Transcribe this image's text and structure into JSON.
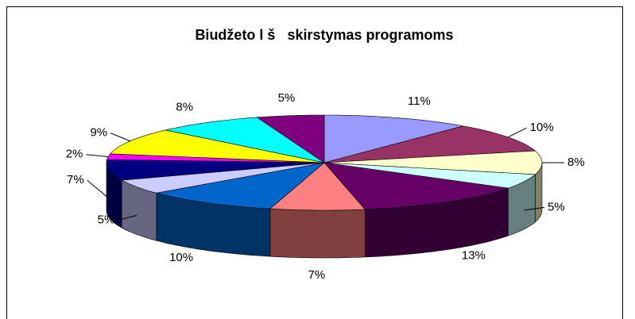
{
  "chart_data": {
    "type": "pie",
    "title": "Biudžeto l š   skirstymas programoms",
    "values": [
      11,
      10,
      8,
      5,
      13,
      7,
      10,
      5,
      7,
      2,
      9,
      8,
      5
    ],
    "value_labels": [
      "11%",
      "10%",
      "8%",
      "5%",
      "13%",
      "7%",
      "10%",
      "5%",
      "7%",
      "2%",
      "9%",
      "8%",
      "5%"
    ],
    "colors": [
      "#9999ff",
      "#993366",
      "#ffffcc",
      "#ccffff",
      "#660066",
      "#ff8080",
      "#0066cc",
      "#ccccff",
      "#000080",
      "#ff00ff",
      "#ffff00",
      "#00ffff",
      "#800080"
    ]
  }
}
